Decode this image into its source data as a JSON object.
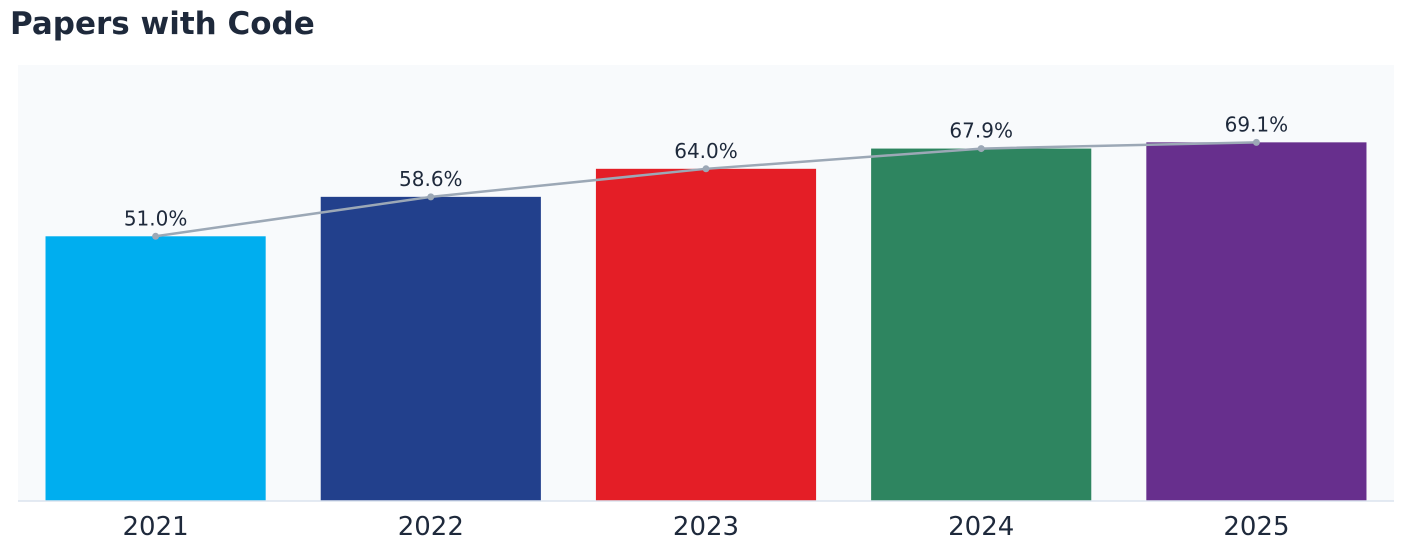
{
  "chart_data": {
    "type": "bar",
    "title": "Papers with Code",
    "categories": [
      "2021",
      "2022",
      "2023",
      "2024",
      "2025"
    ],
    "values": [
      51.0,
      58.6,
      64.0,
      67.9,
      69.1
    ],
    "data_labels": [
      "51.0%",
      "58.6%",
      "64.0%",
      "67.9%",
      "69.1%"
    ],
    "bar_colors": [
      "#00aeef",
      "#22408c",
      "#e41e26",
      "#2e8560",
      "#672f8d"
    ],
    "trend_line": {
      "shown": true,
      "color": "#9ca8b6"
    },
    "ylim": [
      0,
      84
    ],
    "xlabel": "",
    "ylabel": "",
    "grid": false,
    "legend": "none"
  }
}
